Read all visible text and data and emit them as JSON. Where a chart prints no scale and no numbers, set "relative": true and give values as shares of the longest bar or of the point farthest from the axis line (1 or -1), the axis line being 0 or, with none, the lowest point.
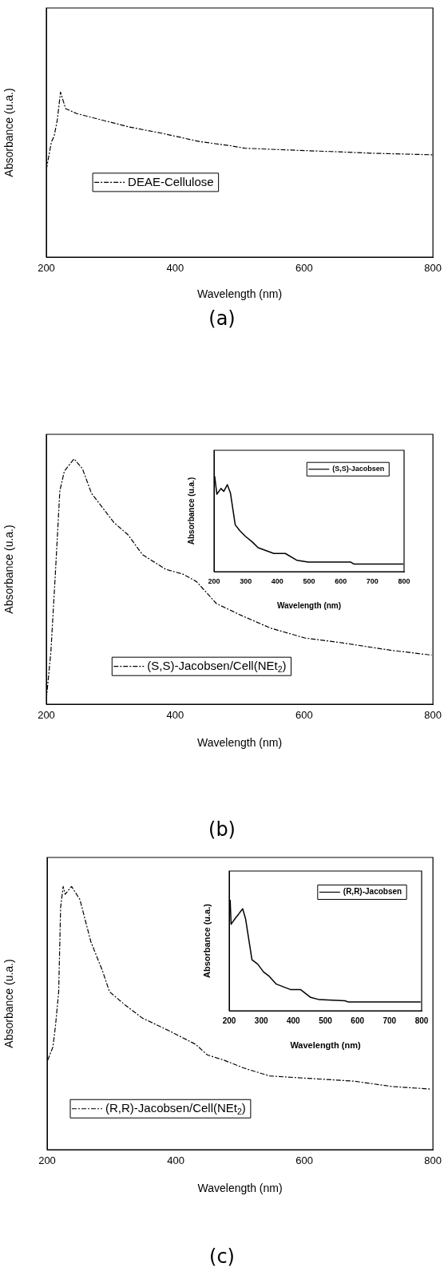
{
  "chart_data": [
    {
      "type": "line",
      "xlabel": "Wavelength (nm)",
      "ylabel": "Absorbance (u.a.)",
      "relative": true,
      "xlim": [
        200,
        800
      ],
      "xticks": [
        200,
        400,
        600,
        800
      ],
      "tick_labels": "x",
      "grid": false,
      "legend": "left",
      "line_style": "dashed",
      "annotations": [
        "(a)"
      ],
      "x": [
        200,
        208,
        212,
        217,
        222,
        230,
        247,
        287,
        327,
        380,
        438,
        486,
        508,
        570,
        640,
        702,
        800
      ],
      "series": [
        {
          "name": "DEAE-Cellulose",
          "color": "#000000",
          "values": [
            0.53,
            0.7,
            0.73,
            0.83,
            1.0,
            0.9,
            0.87,
            0.83,
            0.79,
            0.75,
            0.7,
            0.675,
            0.66,
            0.65,
            0.64,
            0.63,
            0.62
          ]
        }
      ]
    },
    {
      "type": "line",
      "xlabel": "Wavelength (nm)",
      "ylabel": "Absorbance (u.a.)",
      "relative": true,
      "xlim": [
        200,
        800
      ],
      "xticks": [
        200,
        400,
        600,
        800
      ],
      "tick_labels": "x",
      "grid": false,
      "legend": "bottom",
      "line_style": "dashed",
      "annotations": [
        "(b)"
      ],
      "x": [
        200,
        207,
        214,
        221,
        228,
        243,
        256,
        270,
        305,
        327,
        349,
        385,
        412,
        433,
        464,
        504,
        548,
        601,
        659,
        734,
        798
      ],
      "series": [
        {
          "name": "(S,S)-Jacobsen/Cell(NEt$_{2}$)",
          "color": "#000000",
          "values": [
            0.02,
            0.21,
            0.53,
            0.87,
            0.95,
            1.0,
            0.96,
            0.86,
            0.74,
            0.69,
            0.61,
            0.55,
            0.53,
            0.5,
            0.41,
            0.36,
            0.31,
            0.27,
            0.25,
            0.22,
            0.2
          ]
        }
      ]
    },
    {
      "type": "line",
      "xlabel": "Wavelength (nm)",
      "ylabel": "Absorbance (u.a.)",
      "relative": true,
      "xlim": [
        200,
        800
      ],
      "xticks": [
        200,
        300,
        400,
        500,
        600,
        700,
        800
      ],
      "tick_labels": "x",
      "grid": false,
      "legend": "top right",
      "line_style": "solid",
      "x": [
        202,
        209,
        222,
        231,
        242,
        252,
        267,
        281,
        299,
        321,
        339,
        389,
        425,
        461,
        497,
        632,
        641,
        798
      ],
      "series": [
        {
          "name": "(S,S)-Jacobsen",
          "color": "#000000",
          "values": [
            1.0,
            0.81,
            0.87,
            0.84,
            0.91,
            0.82,
            0.49,
            0.43,
            0.37,
            0.31,
            0.25,
            0.19,
            0.19,
            0.12,
            0.1,
            0.1,
            0.08,
            0.08
          ]
        }
      ]
    },
    {
      "type": "line",
      "xlabel": "Wavelength (nm)",
      "ylabel": "Absorbance (u.a.)",
      "relative": true,
      "xlim": [
        200,
        800
      ],
      "xticks": [
        200,
        400,
        600,
        800
      ],
      "tick_labels": "x",
      "grid": false,
      "legend": "bottom left",
      "line_style": "dashed",
      "annotations": [
        "(c)"
      ],
      "x": [
        201,
        209,
        213,
        218,
        221,
        225,
        228,
        238,
        251,
        268,
        286,
        297,
        321,
        348,
        391,
        431,
        449,
        475,
        506,
        546,
        612,
        678,
        736,
        797
      ],
      "series": [
        {
          "name": "(R,R)-Jacobsen/Cell(NEt$_{2}$)",
          "color": "#000000",
          "values": [
            0.34,
            0.39,
            0.47,
            0.6,
            0.92,
            1.0,
            0.97,
            1.0,
            0.95,
            0.79,
            0.68,
            0.6,
            0.55,
            0.5,
            0.45,
            0.4,
            0.36,
            0.34,
            0.31,
            0.28,
            0.27,
            0.26,
            0.24,
            0.23
          ]
        }
      ]
    },
    {
      "type": "line",
      "xlabel": "Wavelength (nm)",
      "ylabel": "Absorbance (u.a.)",
      "relative": true,
      "xlim": [
        200,
        800
      ],
      "xticks": [
        200,
        300,
        400,
        500,
        600,
        700,
        800
      ],
      "tick_labels": "x",
      "grid": false,
      "legend": "top right",
      "line_style": "solid",
      "x": [
        203,
        206,
        218,
        229,
        242,
        251,
        271,
        289,
        307,
        325,
        347,
        392,
        423,
        454,
        481,
        561,
        570,
        797
      ],
      "series": [
        {
          "name": "(R,R)-Jacobsen",
          "color": "#000000",
          "values": [
            1.0,
            0.78,
            0.83,
            0.87,
            0.92,
            0.83,
            0.46,
            0.42,
            0.35,
            0.31,
            0.24,
            0.19,
            0.19,
            0.12,
            0.1,
            0.09,
            0.08,
            0.08
          ]
        }
      ]
    }
  ]
}
